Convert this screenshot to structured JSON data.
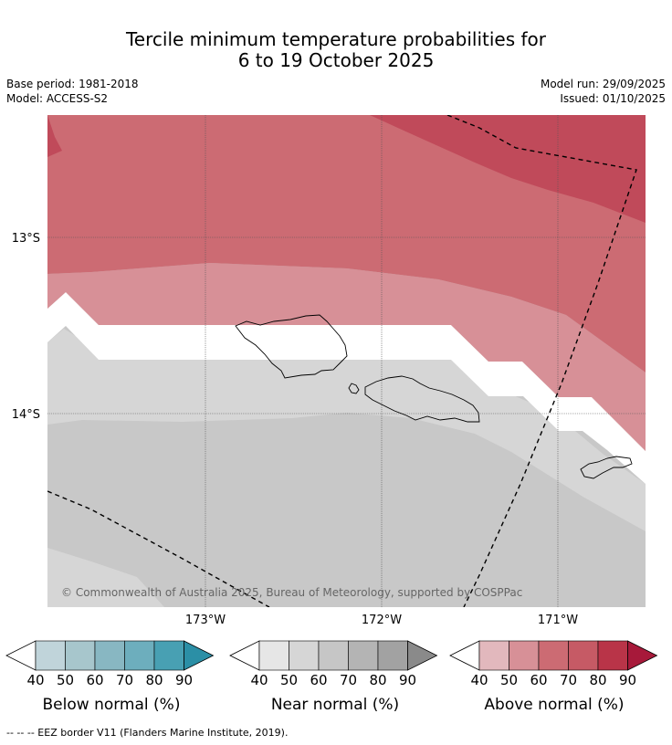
{
  "title_line1": "Tercile minimum temperature probabilities for",
  "title_line2": "6 to 19 October 2025",
  "base_period": "Base period: 1981-2018",
  "model": "Model: ACCESS-S2",
  "model_run": "Model run: 29/09/2025",
  "issued": "Issued: 01/10/2025",
  "map": {
    "lat_labels": [
      "13°S",
      "14°S"
    ],
    "lon_labels": [
      "173°W",
      "172°W",
      "171°W"
    ],
    "copyright": "© Commonwealth of Australia 2025, Bureau of Meteorology, supported by COSPPac"
  },
  "colorbars": [
    {
      "name": "below",
      "label": "Below normal (%)",
      "ticks": [
        "40",
        "50",
        "60",
        "70",
        "80",
        "90"
      ],
      "colors": [
        "#c0d4da",
        "#a7c6cc",
        "#88b7c2",
        "#6daebd",
        "#48a0b3",
        "#2b8fa6"
      ]
    },
    {
      "name": "near",
      "label": "Near normal (%)",
      "ticks": [
        "40",
        "50",
        "60",
        "70",
        "80",
        "90"
      ],
      "colors": [
        "#e6e6e6",
        "#d6d6d6",
        "#c6c6c6",
        "#b4b4b4",
        "#a2a2a2",
        "#8a8a8a"
      ]
    },
    {
      "name": "above",
      "label": "Above normal (%)",
      "ticks": [
        "40",
        "50",
        "60",
        "70",
        "80",
        "90"
      ],
      "colors": [
        "#e2b8bd",
        "#d79097",
        "#cc6b73",
        "#c65a65",
        "#b93448",
        "#a7193a"
      ]
    }
  ],
  "footer": "-- -- -- EEZ border V11 (Flanders Marine Institute, 2019)."
}
